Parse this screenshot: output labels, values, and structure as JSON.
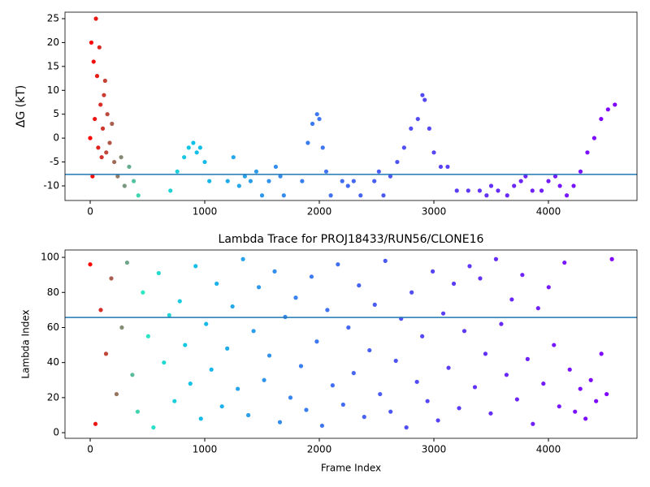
{
  "chart_data": [
    {
      "type": "scatter",
      "y_label": "ΔG (kT)",
      "x": [
        0,
        10,
        20,
        30,
        40,
        50,
        60,
        70,
        80,
        90,
        100,
        110,
        120,
        130,
        140,
        150,
        170,
        190,
        210,
        240,
        270,
        300,
        340,
        380,
        420,
        700,
        760,
        820,
        860,
        900,
        930,
        960,
        1000,
        1040,
        1200,
        1250,
        1300,
        1350,
        1400,
        1450,
        1500,
        1560,
        1620,
        1660,
        1690,
        1850,
        1900,
        1940,
        1980,
        2000,
        2030,
        2060,
        2100,
        2200,
        2250,
        2300,
        2360,
        2480,
        2520,
        2560,
        2620,
        2680,
        2740,
        2800,
        2860,
        2900,
        2920,
        2960,
        3000,
        3060,
        3120,
        3200,
        3300,
        3400,
        3460,
        3500,
        3560,
        3640,
        3700,
        3760,
        3800,
        3860,
        3940,
        4000,
        4060,
        4100,
        4160,
        4220,
        4280,
        4340,
        4400,
        4460,
        4520,
        4580
      ],
      "values": [
        0,
        20,
        -8,
        16,
        4,
        25,
        13,
        -2,
        19,
        7,
        -4,
        2,
        9,
        12,
        -3,
        5,
        -1,
        3,
        -5,
        -8,
        -4,
        -10,
        -6,
        -9,
        -12,
        -11,
        -7,
        -4,
        -2,
        -1,
        -3,
        -2,
        -5,
        -9,
        -9,
        -4,
        -10,
        -8,
        -9,
        -7,
        -12,
        -9,
        -6,
        -8,
        -12,
        -9,
        -1,
        3,
        5,
        4,
        -2,
        -7,
        -12,
        -9,
        -10,
        -9,
        -12,
        -9,
        -7,
        -12,
        -8,
        -5,
        -2,
        2,
        4,
        9,
        8,
        2,
        -3,
        -6,
        -6,
        -11,
        -11,
        -11,
        -12,
        -10,
        -11,
        -12,
        -10,
        -9,
        -8,
        -11,
        -11,
        -9,
        -8,
        -10,
        -12,
        -10,
        -7,
        -3,
        0,
        4,
        6,
        7
      ],
      "hline": -7.6,
      "hline_color": "#1f77b4",
      "colormap": [
        "#ff0000",
        "#30e8c0",
        "#10c0e8",
        "#2aa0ea",
        "#3a80f0",
        "#4468f2",
        "#5050f4",
        "#5a3cf6",
        "#6a28f8",
        "#7818fc",
        "#8000ff"
      ],
      "xlim": [
        -220,
        4773
      ],
      "xticks": [
        0,
        1000,
        2000,
        3000,
        4000
      ],
      "ylim": [
        -13.06,
        26.36
      ],
      "yticks": [
        -10,
        -5,
        0,
        5,
        10,
        15,
        20,
        25
      ]
    },
    {
      "type": "scatter",
      "title": "Lambda Trace for PROJ18433/RUN56/CLONE16",
      "x_label": "Frame Index",
      "y_label": "Lambda Index",
      "x": [
        0,
        46,
        92,
        138,
        184,
        230,
        276,
        322,
        368,
        414,
        460,
        506,
        552,
        598,
        644,
        690,
        736,
        782,
        828,
        874,
        920,
        966,
        1012,
        1058,
        1104,
        1150,
        1196,
        1242,
        1288,
        1334,
        1380,
        1426,
        1472,
        1518,
        1564,
        1610,
        1656,
        1702,
        1748,
        1794,
        1840,
        1886,
        1932,
        1978,
        2024,
        2070,
        2116,
        2162,
        2208,
        2254,
        2300,
        2346,
        2392,
        2438,
        2484,
        2530,
        2576,
        2622,
        2668,
        2714,
        2760,
        2806,
        2852,
        2898,
        2944,
        2990,
        3036,
        3082,
        3128,
        3174,
        3220,
        3266,
        3312,
        3358,
        3404,
        3450,
        3496,
        3542,
        3588,
        3634,
        3680,
        3726,
        3772,
        3818,
        3864,
        3910,
        3956,
        4002,
        4048,
        4094,
        4140,
        4186,
        4232,
        4278,
        4324,
        4370,
        4416,
        4462,
        4508,
        4554
      ],
      "values": [
        96,
        5,
        70,
        45,
        88,
        22,
        60,
        97,
        33,
        12,
        80,
        55,
        3,
        91,
        40,
        67,
        18,
        75,
        50,
        28,
        95,
        8,
        62,
        36,
        85,
        15,
        48,
        72,
        25,
        99,
        10,
        58,
        83,
        30,
        44,
        92,
        6,
        66,
        20,
        77,
        38,
        13,
        89,
        52,
        4,
        70,
        27,
        96,
        16,
        60,
        34,
        84,
        9,
        47,
        73,
        22,
        98,
        12,
        41,
        65,
        3,
        80,
        29,
        55,
        18,
        92,
        7,
        68,
        37,
        85,
        14,
        58,
        95,
        26,
        88,
        45,
        11,
        99,
        62,
        33,
        76,
        19,
        90,
        42,
        5,
        71,
        28,
        83,
        50,
        15,
        97,
        36,
        12,
        25,
        8,
        30,
        18,
        45,
        22,
        99
      ],
      "hline": 65.7,
      "hline_color": "#1f77b4",
      "colormap": [
        "#ff0000",
        "#30e8c0",
        "#10c0e8",
        "#2aa0ea",
        "#3a80f0",
        "#4468f2",
        "#5050f4",
        "#5a3cf6",
        "#6a28f8",
        "#7818fc",
        "#8000ff"
      ],
      "xlim": [
        -220,
        4773
      ],
      "xticks": [
        0,
        1000,
        2000,
        3000,
        4000
      ],
      "ylim": [
        -3.2,
        104.2
      ],
      "yticks": [
        0,
        20,
        40,
        60,
        80,
        100
      ]
    }
  ]
}
